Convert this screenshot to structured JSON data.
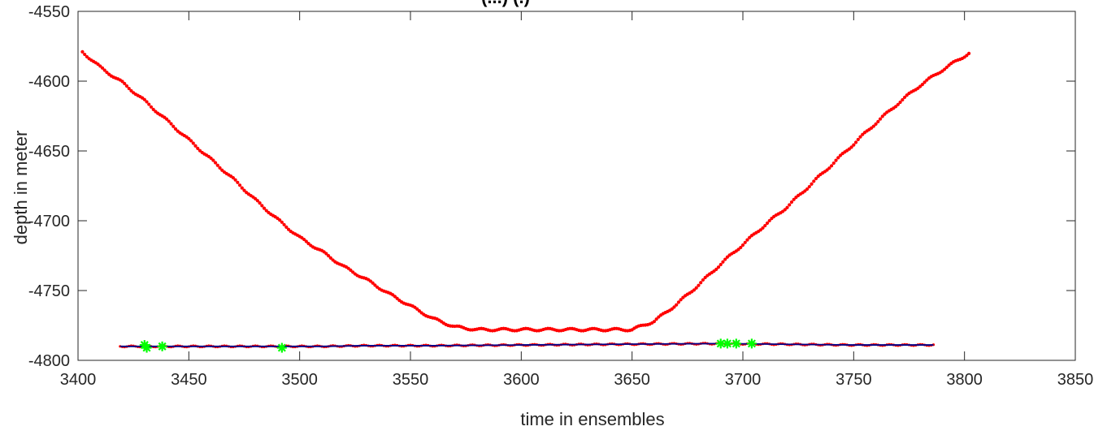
{
  "chart_data": {
    "type": "line",
    "title": "(...)                    (.)",
    "xlabel": "time in ensembles",
    "ylabel": "depth in meter",
    "xlim": [
      3400,
      3850
    ],
    "ylim": [
      -4800,
      -4550
    ],
    "xticks": [
      3400,
      3450,
      3500,
      3550,
      3600,
      3650,
      3700,
      3750,
      3800,
      3850
    ],
    "yticks": [
      -4550,
      -4600,
      -4650,
      -4700,
      -4750,
      -4800
    ],
    "grid": false,
    "legend": "none",
    "colors": {
      "instrument_depth": "#ff0000",
      "bottom_line": "#00008b",
      "bottom_markers": "#ff0000",
      "outlier_stars": "#00ff00",
      "axis": "#262626"
    },
    "series": [
      {
        "style": "dots",
        "x": [
          3402,
          3410,
          3420,
          3430,
          3440,
          3450,
          3460,
          3470,
          3480,
          3490,
          3500,
          3510,
          3520,
          3530,
          3540,
          3550,
          3560,
          3570,
          3580,
          3590,
          3600,
          3610,
          3620,
          3630,
          3640,
          3650,
          3660,
          3670,
          3680,
          3690,
          3700,
          3710,
          3720,
          3730,
          3740,
          3750,
          3760,
          3770,
          3780,
          3790,
          3802
        ],
        "y": [
          -4579,
          -4590,
          -4601,
          -4614,
          -4628,
          -4642,
          -4656,
          -4670,
          -4685,
          -4699,
          -4712,
          -4722,
          -4733,
          -4742,
          -4752,
          -4761,
          -4770,
          -4776,
          -4778,
          -4778,
          -4778,
          -4778,
          -4778,
          -4778,
          -4778,
          -4778,
          -4772,
          -4760,
          -4746,
          -4731,
          -4717,
          -4703,
          -4690,
          -4675,
          -4660,
          -4645,
          -4630,
          -4616,
          -4603,
          -4592,
          -4580
        ]
      },
      {
        "style": "line",
        "x": [
          3419,
          3450,
          3480,
          3510,
          3529,
          3560,
          3600,
          3640,
          3690,
          3720,
          3750,
          3786
        ],
        "y": [
          -4790,
          -4790,
          -4790,
          -4790,
          -4789.5,
          -4789.5,
          -4789,
          -4788.5,
          -4788,
          -4788.5,
          -4789,
          -4789
        ]
      },
      {
        "style": "stars",
        "x": [
          3430,
          3431,
          3438,
          3492,
          3690,
          3693,
          3697,
          3704
        ],
        "y": [
          -4789,
          -4791,
          -4790,
          -4791,
          -4788,
          -4788,
          -4788,
          -4788
        ]
      }
    ]
  }
}
